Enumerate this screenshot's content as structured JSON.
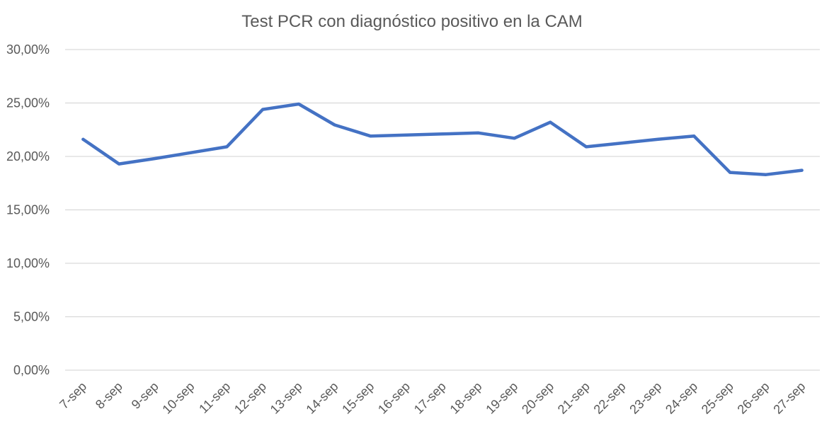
{
  "chart_data": {
    "type": "line",
    "title": "Test PCR con diagnóstico positivo en la CAM",
    "xlabel": "",
    "ylabel": "",
    "categories": [
      "7-sep",
      "8-sep",
      "9-sep",
      "10-sep",
      "11-sep",
      "12-sep",
      "13-sep",
      "14-sep",
      "15-sep",
      "16-sep",
      "17-sep",
      "18-sep",
      "19-sep",
      "20-sep",
      "21-sep",
      "22-sep",
      "23-sep",
      "24-sep",
      "25-sep",
      "26-sep",
      "27-sep"
    ],
    "series": [
      {
        "values": [
          21.6,
          19.3,
          19.8,
          20.35,
          20.9,
          24.4,
          24.9,
          22.95,
          21.9,
          22.0,
          22.1,
          22.2,
          21.7,
          23.2,
          20.9,
          21.25,
          21.6,
          21.9,
          18.5,
          18.3,
          18.7
        ],
        "color": "#4472C4"
      }
    ],
    "ylim": [
      0,
      30
    ],
    "yticks": [
      0,
      5,
      10,
      15,
      20,
      25,
      30
    ],
    "ytick_labels": [
      "0,00%",
      "5,00%",
      "10,00%",
      "15,00%",
      "20,00%",
      "25,00%",
      "30,00%"
    ],
    "grid": true,
    "legend": "none"
  }
}
